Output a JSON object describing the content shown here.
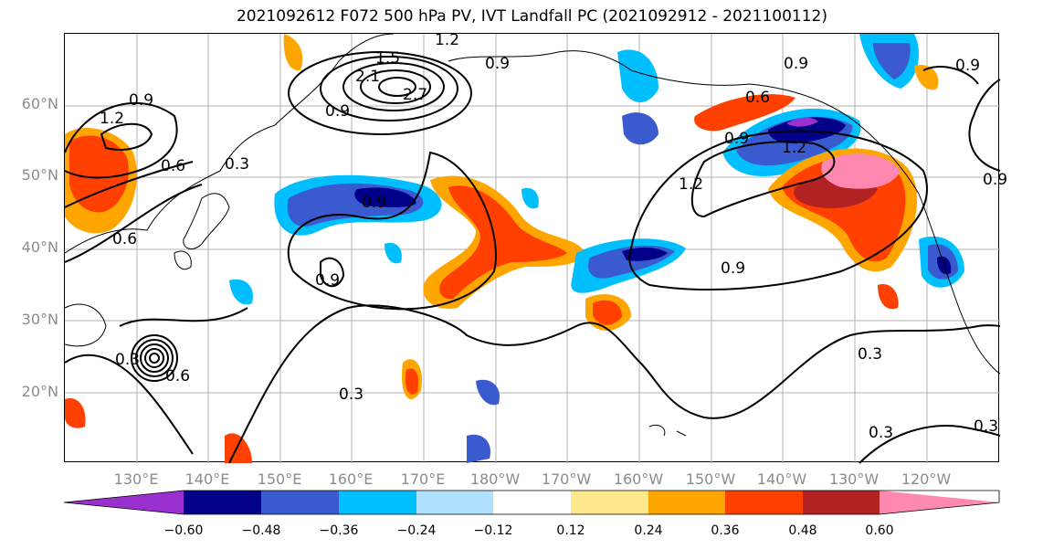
{
  "title": "2021092612 F072 500 hPa PV, IVT Landfall PC (2021092912 - 2021100112)",
  "lat_labels": [
    "60°N",
    "50°N",
    "40°N",
    "30°N",
    "20°N"
  ],
  "lon_labels": [
    "130°E",
    "140°E",
    "150°E",
    "160°E",
    "170°E",
    "180°W",
    "170°W",
    "160°W",
    "150°W",
    "140°W",
    "130°W",
    "120°W"
  ],
  "contour_labels": [
    "1.2",
    "1.5",
    "2.1",
    "2.7",
    "0.9",
    "0.9",
    "0.9",
    "0.6",
    "0.9",
    "1.2",
    "0.6",
    "0.3",
    "0.6",
    "1.2",
    "0.9",
    "1.2",
    "0.9",
    "0.9",
    "0.9",
    "0.3",
    "0.3",
    "0.3",
    "0.3",
    "0.3",
    "0.6",
    "0.9",
    "0.9"
  ],
  "colorbar": {
    "colors": [
      "#9b30d0",
      "#000088",
      "#3a5bd0",
      "#00bfff",
      "#b0e2ff",
      "#ffffff",
      "#ffe98c",
      "#ffa500",
      "#ff4000",
      "#b22222",
      "#ff88b0"
    ],
    "tick_labels": [
      "−0.60",
      "−0.48",
      "−0.36",
      "−0.24",
      "−0.12",
      "0.12",
      "0.24",
      "0.36",
      "0.48",
      "0.60"
    ]
  }
}
